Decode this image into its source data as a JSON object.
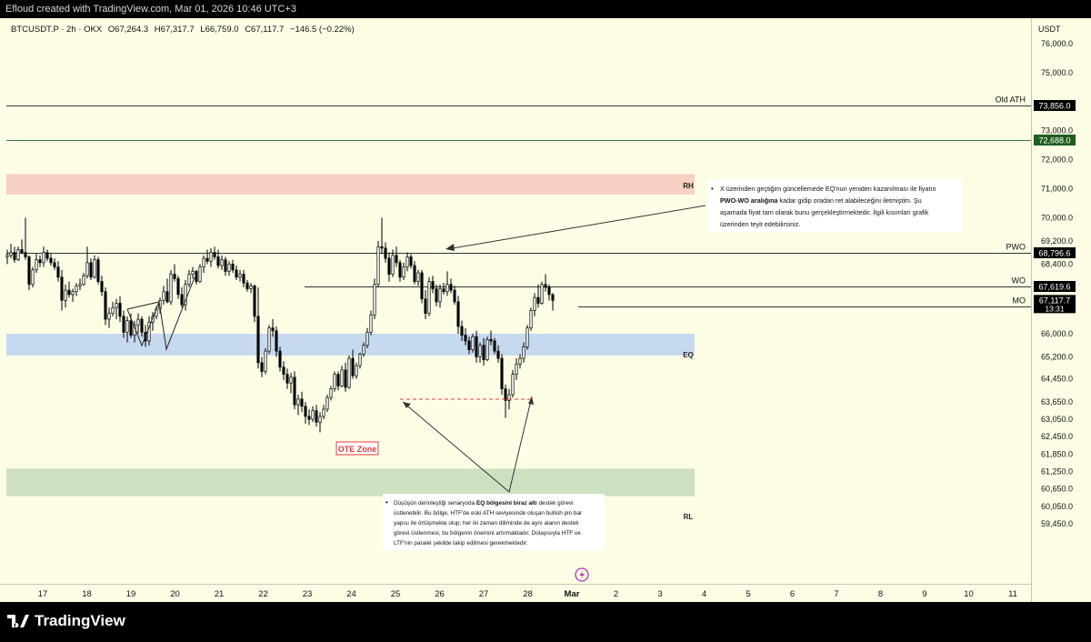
{
  "header": {
    "credit": "Efloud created with TradingView.com, Mar 01, 2026 10:46 UTC+3"
  },
  "legend": {
    "symbol": "BTCUSDT.P · 2h · OKX",
    "open": "O67,264.3",
    "high": "H67,317.7",
    "low": "L66,759.0",
    "close": "C67,117.7",
    "change": "−146.5 (−0.22%)"
  },
  "colors": {
    "background": "#fdfde6",
    "up": "#ffffff",
    "down": "#000000",
    "rh_zone": "#f7cfc3",
    "eq_zone": "#c6d9ef",
    "rl_zone": "#cde0c0",
    "green_label": "#1f5d1f",
    "ote_red": "#e63a3a"
  },
  "chart_data": {
    "type": "candlestick",
    "symbol": "BTCUSDT.P",
    "interval": "2h",
    "exchange": "OKX",
    "currency": "USDT",
    "ylim": [
      59000,
      76700
    ],
    "x_ticks": [
      "17",
      "18",
      "19",
      "20",
      "21",
      "22",
      "23",
      "24",
      "25",
      "26",
      "27",
      "28",
      "Mar",
      "2",
      "3",
      "4",
      "5",
      "6",
      "7",
      "8",
      "9",
      "10",
      "11"
    ],
    "y_ticks": [
      76000,
      75000,
      73000,
      72000,
      71000,
      70000,
      69200,
      68400,
      66000,
      65200,
      64450,
      63650,
      63050,
      62450,
      61850,
      61250,
      60650,
      60050,
      59450
    ],
    "y_tick_labels": [
      "76,000.0",
      "75,000.0",
      "73,000.0",
      "72,000.0",
      "71,000.0",
      "70,000.0",
      "69,200.0",
      "68,400.0",
      "66,000.0",
      "65,200.0",
      "64,450.0",
      "63,650.0",
      "63,050.0",
      "62,450.0",
      "61,850.0",
      "61,250.0",
      "60,650.0",
      "60,050.0",
      "59,450.0"
    ],
    "levels": [
      {
        "name": "Old ATH",
        "value": 73856.0,
        "label": "73,856.0",
        "color": "#000000"
      },
      {
        "name": "",
        "value": 72688.0,
        "label": "72,688.0",
        "color": "#1f5d1f"
      },
      {
        "name": "PWO",
        "value": 68796.6,
        "label": "68,796.6",
        "color": "#000000"
      },
      {
        "name": "WO",
        "value": 67619.6,
        "label": "67,619.6",
        "color": "#000000"
      },
      {
        "name": "MO",
        "value": 66938.2,
        "label": "66,938.2",
        "color": "#000000"
      }
    ],
    "last_price": {
      "value": 67117.7,
      "label": "67,117.7",
      "countdown": "13:31"
    },
    "zones": [
      {
        "name": "RH",
        "from": 70800,
        "to": 71500,
        "color": "#f7cfc3"
      },
      {
        "name": "EQ",
        "from": 65250,
        "to": 66000,
        "color": "#c6d9ef"
      },
      {
        "name": "RL",
        "from": 60400,
        "to": 61350,
        "color": "#cde0c0"
      }
    ],
    "candles": [
      [
        68650,
        68900,
        68400,
        68700
      ],
      [
        68700,
        69100,
        68600,
        68800
      ],
      [
        68800,
        69000,
        68450,
        68550
      ],
      [
        68550,
        69000,
        68500,
        68900
      ],
      [
        68900,
        69250,
        68750,
        68800
      ],
      [
        68800,
        70000,
        68550,
        68650
      ],
      [
        68650,
        68700,
        67500,
        67700
      ],
      [
        67700,
        68300,
        67600,
        68200
      ],
      [
        68200,
        68750,
        68100,
        68550
      ],
      [
        68550,
        68700,
        68300,
        68450
      ],
      [
        68450,
        69000,
        68300,
        68800
      ],
      [
        68800,
        68900,
        68500,
        68600
      ],
      [
        68600,
        68750,
        68350,
        68450
      ],
      [
        68450,
        68600,
        68200,
        68300
      ],
      [
        68300,
        68500,
        67800,
        67950
      ],
      [
        67950,
        68200,
        66800,
        67150
      ],
      [
        67150,
        67700,
        66900,
        67500
      ],
      [
        67500,
        67800,
        67250,
        67350
      ],
      [
        67350,
        67550,
        67100,
        67450
      ],
      [
        67450,
        67750,
        67300,
        67650
      ],
      [
        67650,
        67900,
        67500,
        67700
      ],
      [
        67700,
        68100,
        67650,
        68000
      ],
      [
        68000,
        69000,
        67900,
        68450
      ],
      [
        68450,
        68600,
        67850,
        67950
      ],
      [
        67950,
        68700,
        67900,
        68550
      ],
      [
        68550,
        68650,
        67700,
        67800
      ],
      [
        67800,
        68000,
        67300,
        67450
      ],
      [
        67450,
        67600,
        66300,
        66500
      ],
      [
        66500,
        66900,
        66200,
        66700
      ],
      [
        66700,
        67100,
        66600,
        66900
      ],
      [
        66900,
        67200,
        66500,
        67050
      ],
      [
        67050,
        67300,
        66400,
        66600
      ],
      [
        66600,
        66800,
        65850,
        66050
      ],
      [
        66050,
        66600,
        65700,
        66450
      ],
      [
        66450,
        66700,
        65850,
        65950
      ],
      [
        65950,
        66450,
        65700,
        66300
      ],
      [
        66300,
        66700,
        66000,
        66500
      ],
      [
        66500,
        66600,
        65900,
        66050
      ],
      [
        66050,
        66300,
        65550,
        65750
      ],
      [
        65750,
        66600,
        65600,
        66400
      ],
      [
        66400,
        66750,
        66100,
        66600
      ],
      [
        66600,
        66950,
        66500,
        66850
      ],
      [
        66850,
        67250,
        66700,
        67150
      ],
      [
        67150,
        67650,
        67000,
        67450
      ],
      [
        67450,
        67900,
        67050,
        67100
      ],
      [
        67100,
        68200,
        67000,
        68050
      ],
      [
        68050,
        68400,
        67800,
        67900
      ],
      [
        67900,
        68000,
        67200,
        67350
      ],
      [
        67350,
        67600,
        66900,
        67000
      ],
      [
        67000,
        67850,
        66800,
        67700
      ],
      [
        67700,
        68200,
        67600,
        68050
      ],
      [
        68050,
        68300,
        67900,
        68150
      ],
      [
        68150,
        68200,
        67700,
        67800
      ],
      [
        67800,
        68400,
        67750,
        68300
      ],
      [
        68300,
        68700,
        68100,
        68600
      ],
      [
        68600,
        68900,
        68400,
        68500
      ],
      [
        68500,
        68950,
        68300,
        68800
      ],
      [
        68800,
        69000,
        68550,
        68650
      ],
      [
        68650,
        68900,
        68250,
        68350
      ],
      [
        68350,
        68700,
        68200,
        68550
      ],
      [
        68550,
        68650,
        68000,
        68150
      ],
      [
        68150,
        68500,
        68000,
        68400
      ],
      [
        68400,
        68550,
        68100,
        68200
      ],
      [
        68200,
        68350,
        67850,
        67950
      ],
      [
        67950,
        68200,
        67800,
        68050
      ],
      [
        68050,
        68200,
        67600,
        67750
      ],
      [
        67750,
        67850,
        67450,
        67550
      ],
      [
        67550,
        67750,
        67400,
        67650
      ],
      [
        67650,
        67700,
        66400,
        66600
      ],
      [
        66600,
        67600,
        64800,
        65000
      ],
      [
        65000,
        65200,
        64500,
        64700
      ],
      [
        64700,
        65500,
        64600,
        65400
      ],
      [
        65400,
        66300,
        65300,
        66200
      ],
      [
        66200,
        66500,
        65900,
        66100
      ],
      [
        66100,
        66250,
        65200,
        65400
      ],
      [
        65400,
        65550,
        64700,
        64850
      ],
      [
        64850,
        65050,
        64400,
        64600
      ],
      [
        64600,
        64800,
        64100,
        64300
      ],
      [
        64300,
        64650,
        63950,
        64500
      ],
      [
        64500,
        64700,
        63400,
        63550
      ],
      [
        63550,
        63900,
        63200,
        63750
      ],
      [
        63750,
        64000,
        63300,
        63500
      ],
      [
        63500,
        63650,
        62900,
        63150
      ],
      [
        63150,
        63400,
        62850,
        63050
      ],
      [
        63050,
        63500,
        62950,
        63350
      ],
      [
        63350,
        63550,
        62800,
        62950
      ],
      [
        62950,
        63300,
        62600,
        63150
      ],
      [
        63150,
        63550,
        63050,
        63400
      ],
      [
        63400,
        63900,
        63300,
        63800
      ],
      [
        63800,
        64200,
        63700,
        64100
      ],
      [
        64100,
        64700,
        64000,
        64600
      ],
      [
        64600,
        64700,
        64050,
        64200
      ],
      [
        64200,
        64900,
        64150,
        64750
      ],
      [
        64750,
        65000,
        64000,
        64150
      ],
      [
        64150,
        65250,
        64100,
        65150
      ],
      [
        65150,
        65450,
        64450,
        64550
      ],
      [
        64550,
        65000,
        64450,
        64900
      ],
      [
        64900,
        65350,
        64800,
        65300
      ],
      [
        65300,
        65700,
        65200,
        65600
      ],
      [
        65600,
        66200,
        65500,
        66050
      ],
      [
        66050,
        66800,
        65950,
        66650
      ],
      [
        66650,
        67900,
        66500,
        67700
      ],
      [
        67700,
        69200,
        67600,
        69000
      ],
      [
        69000,
        70000,
        68750,
        68950
      ],
      [
        68950,
        69150,
        68450,
        68600
      ],
      [
        68600,
        68800,
        67800,
        68050
      ],
      [
        68050,
        68900,
        67950,
        68700
      ],
      [
        68700,
        69000,
        68300,
        68450
      ],
      [
        68450,
        68550,
        67800,
        67950
      ],
      [
        67950,
        68450,
        67850,
        68300
      ],
      [
        68300,
        68800,
        68150,
        68650
      ],
      [
        68650,
        68750,
        68250,
        68350
      ],
      [
        68350,
        68500,
        67700,
        67800
      ],
      [
        67800,
        68200,
        67650,
        68100
      ],
      [
        68100,
        68200,
        67050,
        67200
      ],
      [
        67200,
        67500,
        66500,
        66700
      ],
      [
        66700,
        67950,
        66600,
        67800
      ],
      [
        67800,
        68000,
        67400,
        67550
      ],
      [
        67550,
        67700,
        66950,
        67100
      ],
      [
        67100,
        67700,
        66900,
        67550
      ],
      [
        67550,
        67750,
        67350,
        67450
      ],
      [
        67450,
        68150,
        67300,
        67700
      ],
      [
        67700,
        67900,
        67400,
        67500
      ],
      [
        67500,
        67650,
        67000,
        67100
      ],
      [
        67100,
        67300,
        66000,
        66250
      ],
      [
        66250,
        66450,
        65750,
        65950
      ],
      [
        65950,
        66200,
        65600,
        65750
      ],
      [
        65750,
        65900,
        65300,
        65450
      ],
      [
        65450,
        66000,
        65350,
        65900
      ],
      [
        65900,
        66100,
        65000,
        65200
      ],
      [
        65200,
        65700,
        65000,
        65600
      ],
      [
        65600,
        65850,
        64900,
        65100
      ],
      [
        65100,
        65900,
        65050,
        65800
      ],
      [
        65800,
        66100,
        65600,
        65750
      ],
      [
        65750,
        65850,
        65300,
        65400
      ],
      [
        65400,
        65600,
        65000,
        65150
      ],
      [
        65150,
        65300,
        63900,
        64100
      ],
      [
        64100,
        64250,
        63100,
        63700
      ],
      [
        63700,
        64100,
        63400,
        63900
      ],
      [
        63900,
        64750,
        63800,
        64600
      ],
      [
        64600,
        65150,
        64400,
        64950
      ],
      [
        64950,
        65300,
        64800,
        65150
      ],
      [
        65150,
        65700,
        65000,
        65550
      ],
      [
        65550,
        66300,
        65450,
        66200
      ],
      [
        66200,
        66900,
        66100,
        66800
      ],
      [
        66800,
        67400,
        66600,
        67250
      ],
      [
        67250,
        67700,
        66900,
        67050
      ],
      [
        67050,
        67800,
        67000,
        67700
      ],
      [
        67700,
        68050,
        67450,
        67600
      ],
      [
        67600,
        67700,
        67150,
        67350
      ],
      [
        67350,
        67400,
        66800,
        67150
      ]
    ],
    "annotations": [
      {
        "label": "OTE Zone",
        "color": "#e63a3a"
      },
      {
        "label": "RH"
      },
      {
        "label": "EQ"
      },
      {
        "label": "RL"
      }
    ],
    "notes": {
      "upper": {
        "bullet": "•",
        "t1": "X üzerinden geçtiğim güncellemede EQ'nun yeniden kazanılması ile fiyatın",
        "t2a": "PWO-WO aralığına",
        "t2b": " kadar gidip oradan ret alabileceğini iletmiştim. Şu",
        "t3": "aşamada fiyat tam olarak bunu gerçekleştirmektedir. İlgili kısımları grafik",
        "t4": "üzerinden teyit edebilirsiniz."
      },
      "lower": {
        "bullet": "•",
        "t1a": "Düşüşün derinleştiği senaryoda ",
        "t1b": "EQ bölgesini biraz altı",
        "t1c": " destek görevi",
        "t2": "üstlenebilir. Bu bölge, HTF'de eski ATH seviyesinde oluşan bullish pin bar",
        "t3": "yapısı ile örtüşmekte olup; her iki zaman diliminde de aynı alanın destek",
        "t4": "görevi üstlenmesi, bu bölgenin önemini artırmaktadır. Dolayısıyla HTF ve",
        "t5": "LTF'nin paralel şekilde takip edilmesi gerekmektedir."
      }
    }
  },
  "footer": {
    "brand": "TradingView"
  }
}
